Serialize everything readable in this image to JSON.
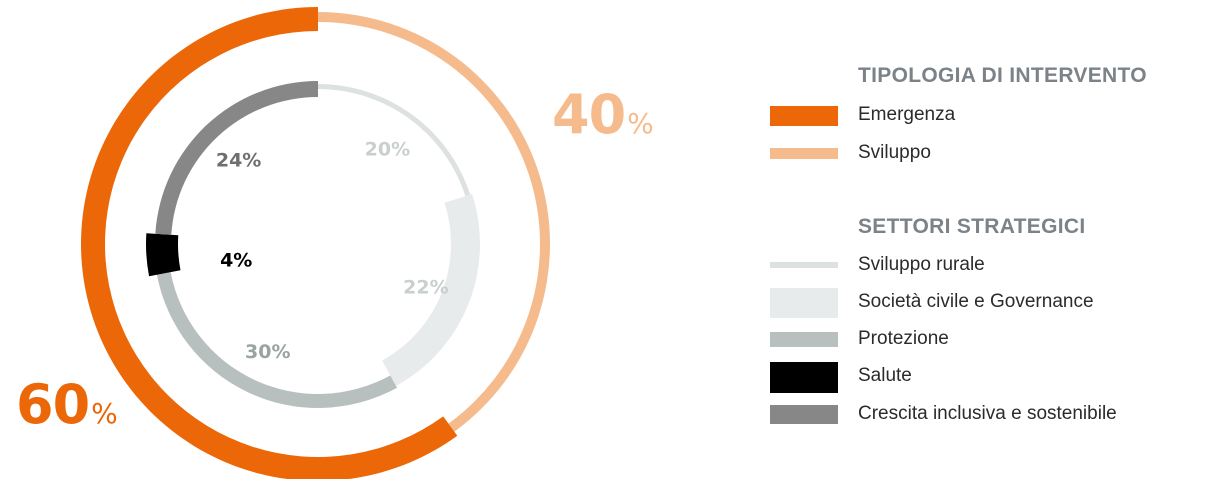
{
  "chart_data": [
    {
      "type": "pie",
      "name": "tipologia",
      "slices": [
        {
          "label": "Emergenza",
          "value": 60,
          "color": "#ec6707"
        },
        {
          "label": "Sviluppo",
          "value": 40,
          "color": "#f6bb8c"
        }
      ],
      "value_labels": [
        {
          "num": "60",
          "sym": "%"
        },
        {
          "num": "40",
          "sym": "%"
        }
      ]
    },
    {
      "type": "pie",
      "name": "settori",
      "slices": [
        {
          "label": "Sviluppo rurale",
          "value": 20,
          "text": "20%",
          "color": "#dde1e1"
        },
        {
          "label": "Società civile e Governance",
          "value": 22,
          "text": "22%",
          "color": "#e8ebeb"
        },
        {
          "label": "Protezione",
          "value": 30,
          "text": "30%",
          "color": "#b8bfbf"
        },
        {
          "label": "Salute",
          "value": 4,
          "text": "4%",
          "color": "#000000"
        },
        {
          "label": "Crescita inclusiva e sostenibile",
          "value": 24,
          "text": "24%",
          "color": "#878787"
        }
      ]
    }
  ],
  "legend": {
    "tipologia_title": "TIPOLOGIA DI INTERVENTO",
    "settori_title": "SETTORI STRATEGICI"
  }
}
